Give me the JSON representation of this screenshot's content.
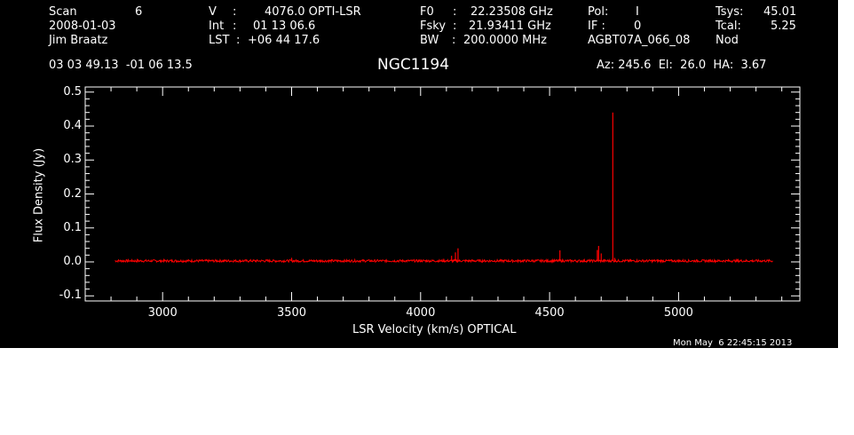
{
  "header": {
    "col1": {
      "scan_label": "Scan",
      "scan_value": "6",
      "date": "2008-01-03",
      "observer": "Jim Braatz"
    },
    "col2": {
      "v_label": "V",
      "v_sep": ":",
      "v_value": "4076.0 OPTI-LSR",
      "int_label": "Int",
      "int_sep": ":",
      "int_value": "01 13 06.6",
      "lst_label": "LST",
      "lst_sep": ":",
      "lst_value": "+06 44 17.6"
    },
    "col3": {
      "f0_label": "F0",
      "f0_sep": ":",
      "f0_value": "22.23508 GHz",
      "fsky_label": "Fsky",
      "fsky_sep": ":",
      "fsky_value": "21.93411 GHz",
      "bw_label": "BW",
      "bw_sep": ":",
      "bw_value": "200.0000 MHz"
    },
    "col4": {
      "pol_label": "Pol:",
      "pol_value": "I",
      "if_label": "IF :",
      "if_value": "0",
      "project": "AGBT07A_066_08"
    },
    "col5": {
      "tsys_label": "Tsys:",
      "tsys_value": "45.01",
      "tcal_label": "Tcal:",
      "tcal_value": "5.25",
      "mode": "Nod"
    },
    "coords": "03 03 49.13  -01 06 13.5",
    "source": "NGC1194",
    "azelha": "Az: 245.6  El:  26.0  HA:  3.67",
    "timestamp": "Mon May  6 22:45:15 2013"
  },
  "colors": {
    "background": "#000000",
    "foreground": "#ffffff",
    "trace": "#ff0000"
  },
  "chart_data": {
    "type": "line",
    "title": "NGC1194",
    "xlabel": "LSR Velocity (km/s) OPTICAL",
    "ylabel": "Flux Density (Jy)",
    "xlim": [
      2700,
      5470
    ],
    "ylim": [
      -0.115,
      0.515
    ],
    "xticks": [
      3000,
      3500,
      4000,
      4500,
      5000
    ],
    "xtick_labels": [
      "3000",
      "3500",
      "4000",
      "4500",
      "5000"
    ],
    "yticks": [
      -0.1,
      0.0,
      0.1,
      0.2,
      0.3,
      0.4,
      0.5
    ],
    "ytick_labels": [
      "-0.1",
      "0.0",
      "0.1",
      "0.2",
      "0.3",
      "0.4",
      "0.5"
    ],
    "grid": false,
    "series": [
      {
        "color": "#ff0000",
        "x_range": [
          2815,
          5365
        ],
        "baseline": 0.003,
        "noise": 0.0035,
        "features": [
          {
            "x": 3500,
            "y": 0.012
          },
          {
            "x": 4120,
            "y": 0.018
          },
          {
            "x": 4135,
            "y": 0.028
          },
          {
            "x": 4145,
            "y": 0.04
          },
          {
            "x": 4540,
            "y": 0.034
          },
          {
            "x": 4685,
            "y": 0.035
          },
          {
            "x": 4690,
            "y": 0.047
          },
          {
            "x": 4700,
            "y": 0.025
          },
          {
            "x": 4745,
            "y": 0.44
          },
          {
            "x": 4752,
            "y": 0.012
          }
        ]
      }
    ]
  }
}
